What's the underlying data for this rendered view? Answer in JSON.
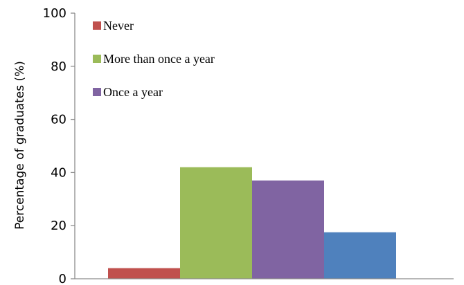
{
  "chart_data": {
    "type": "bar",
    "title": "",
    "xlabel": "",
    "ylabel": "Percentage of graduates  (%)",
    "ylim": [
      0,
      100
    ],
    "yticks": [
      0,
      20,
      40,
      60,
      80,
      100
    ],
    "grid": false,
    "legend_position": "top-left",
    "series": [
      {
        "name": "Never",
        "value": 4,
        "color": "#c0504d"
      },
      {
        "name": "More than once a year",
        "value": 42,
        "color": "#9bbb59"
      },
      {
        "name": "Once a year",
        "value": 37,
        "color": "#8064a2"
      },
      {
        "name": "",
        "value": 17.5,
        "color": "#4f81bd"
      }
    ]
  }
}
